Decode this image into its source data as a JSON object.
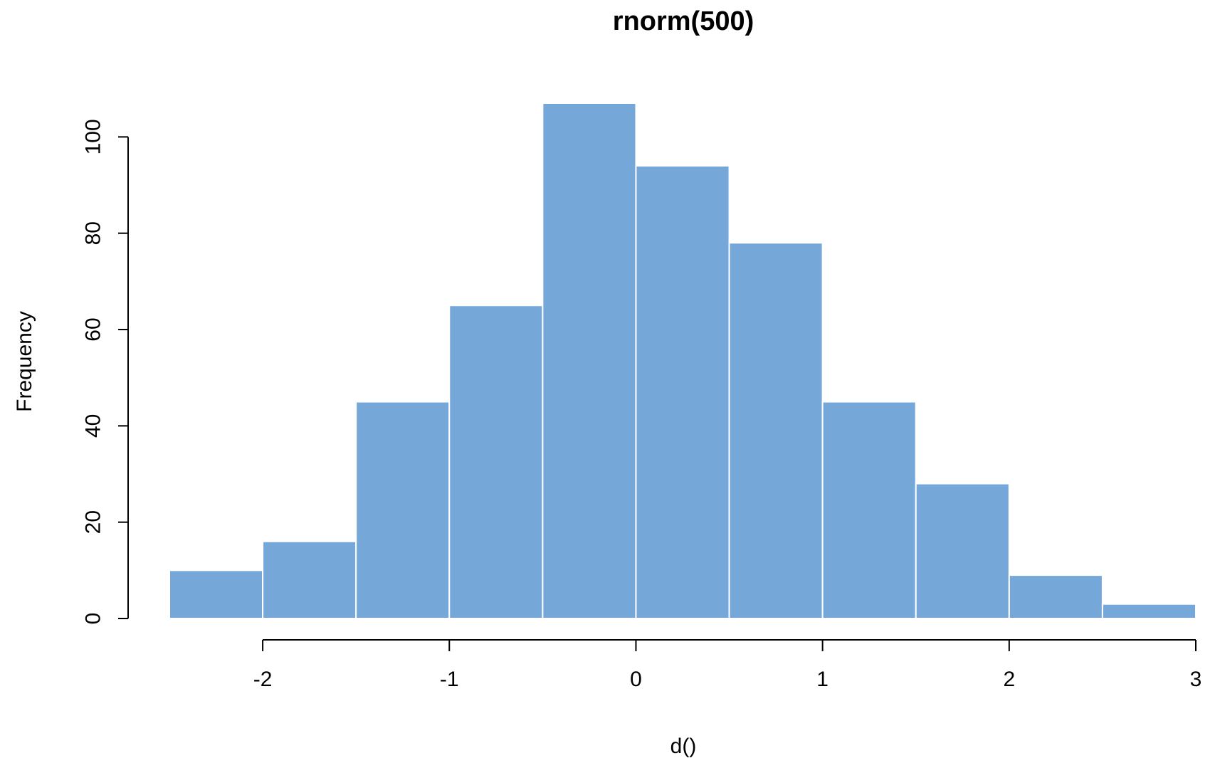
{
  "chart_data": {
    "type": "bar",
    "subtype": "histogram",
    "title": "rnorm(500)",
    "xlabel": "d()",
    "ylabel": "Frequency",
    "bins": [
      {
        "x0": -2.5,
        "x1": -2.0,
        "count": 10
      },
      {
        "x0": -2.0,
        "x1": -1.5,
        "count": 16
      },
      {
        "x0": -1.5,
        "x1": -1.0,
        "count": 45
      },
      {
        "x0": -1.0,
        "x1": -0.5,
        "count": 65
      },
      {
        "x0": -0.5,
        "x1": 0.0,
        "count": 107
      },
      {
        "x0": 0.0,
        "x1": 0.5,
        "count": 94
      },
      {
        "x0": 0.5,
        "x1": 1.0,
        "count": 78
      },
      {
        "x0": 1.0,
        "x1": 1.5,
        "count": 45
      },
      {
        "x0": 1.5,
        "x1": 2.0,
        "count": 28
      },
      {
        "x0": 2.0,
        "x1": 2.5,
        "count": 9
      },
      {
        "x0": 2.5,
        "x1": 3.0,
        "count": 3
      }
    ],
    "xlim": [
      -2.5,
      3.0
    ],
    "ylim": [
      0,
      107
    ],
    "xticks": [
      -2,
      -1,
      0,
      1,
      2,
      3
    ],
    "xtick_labels": [
      "-2",
      "-1",
      "0",
      "1",
      "2",
      "3"
    ],
    "yticks": [
      0,
      20,
      40,
      60,
      80,
      100
    ],
    "ytick_labels": [
      "0",
      "20",
      "40",
      "60",
      "80",
      "100"
    ],
    "grid": false,
    "legend": "none",
    "colors": {
      "bar_fill": "#76a7d9",
      "bar_border": "#ffffff",
      "axis": "#000000",
      "text": "#000000"
    }
  }
}
